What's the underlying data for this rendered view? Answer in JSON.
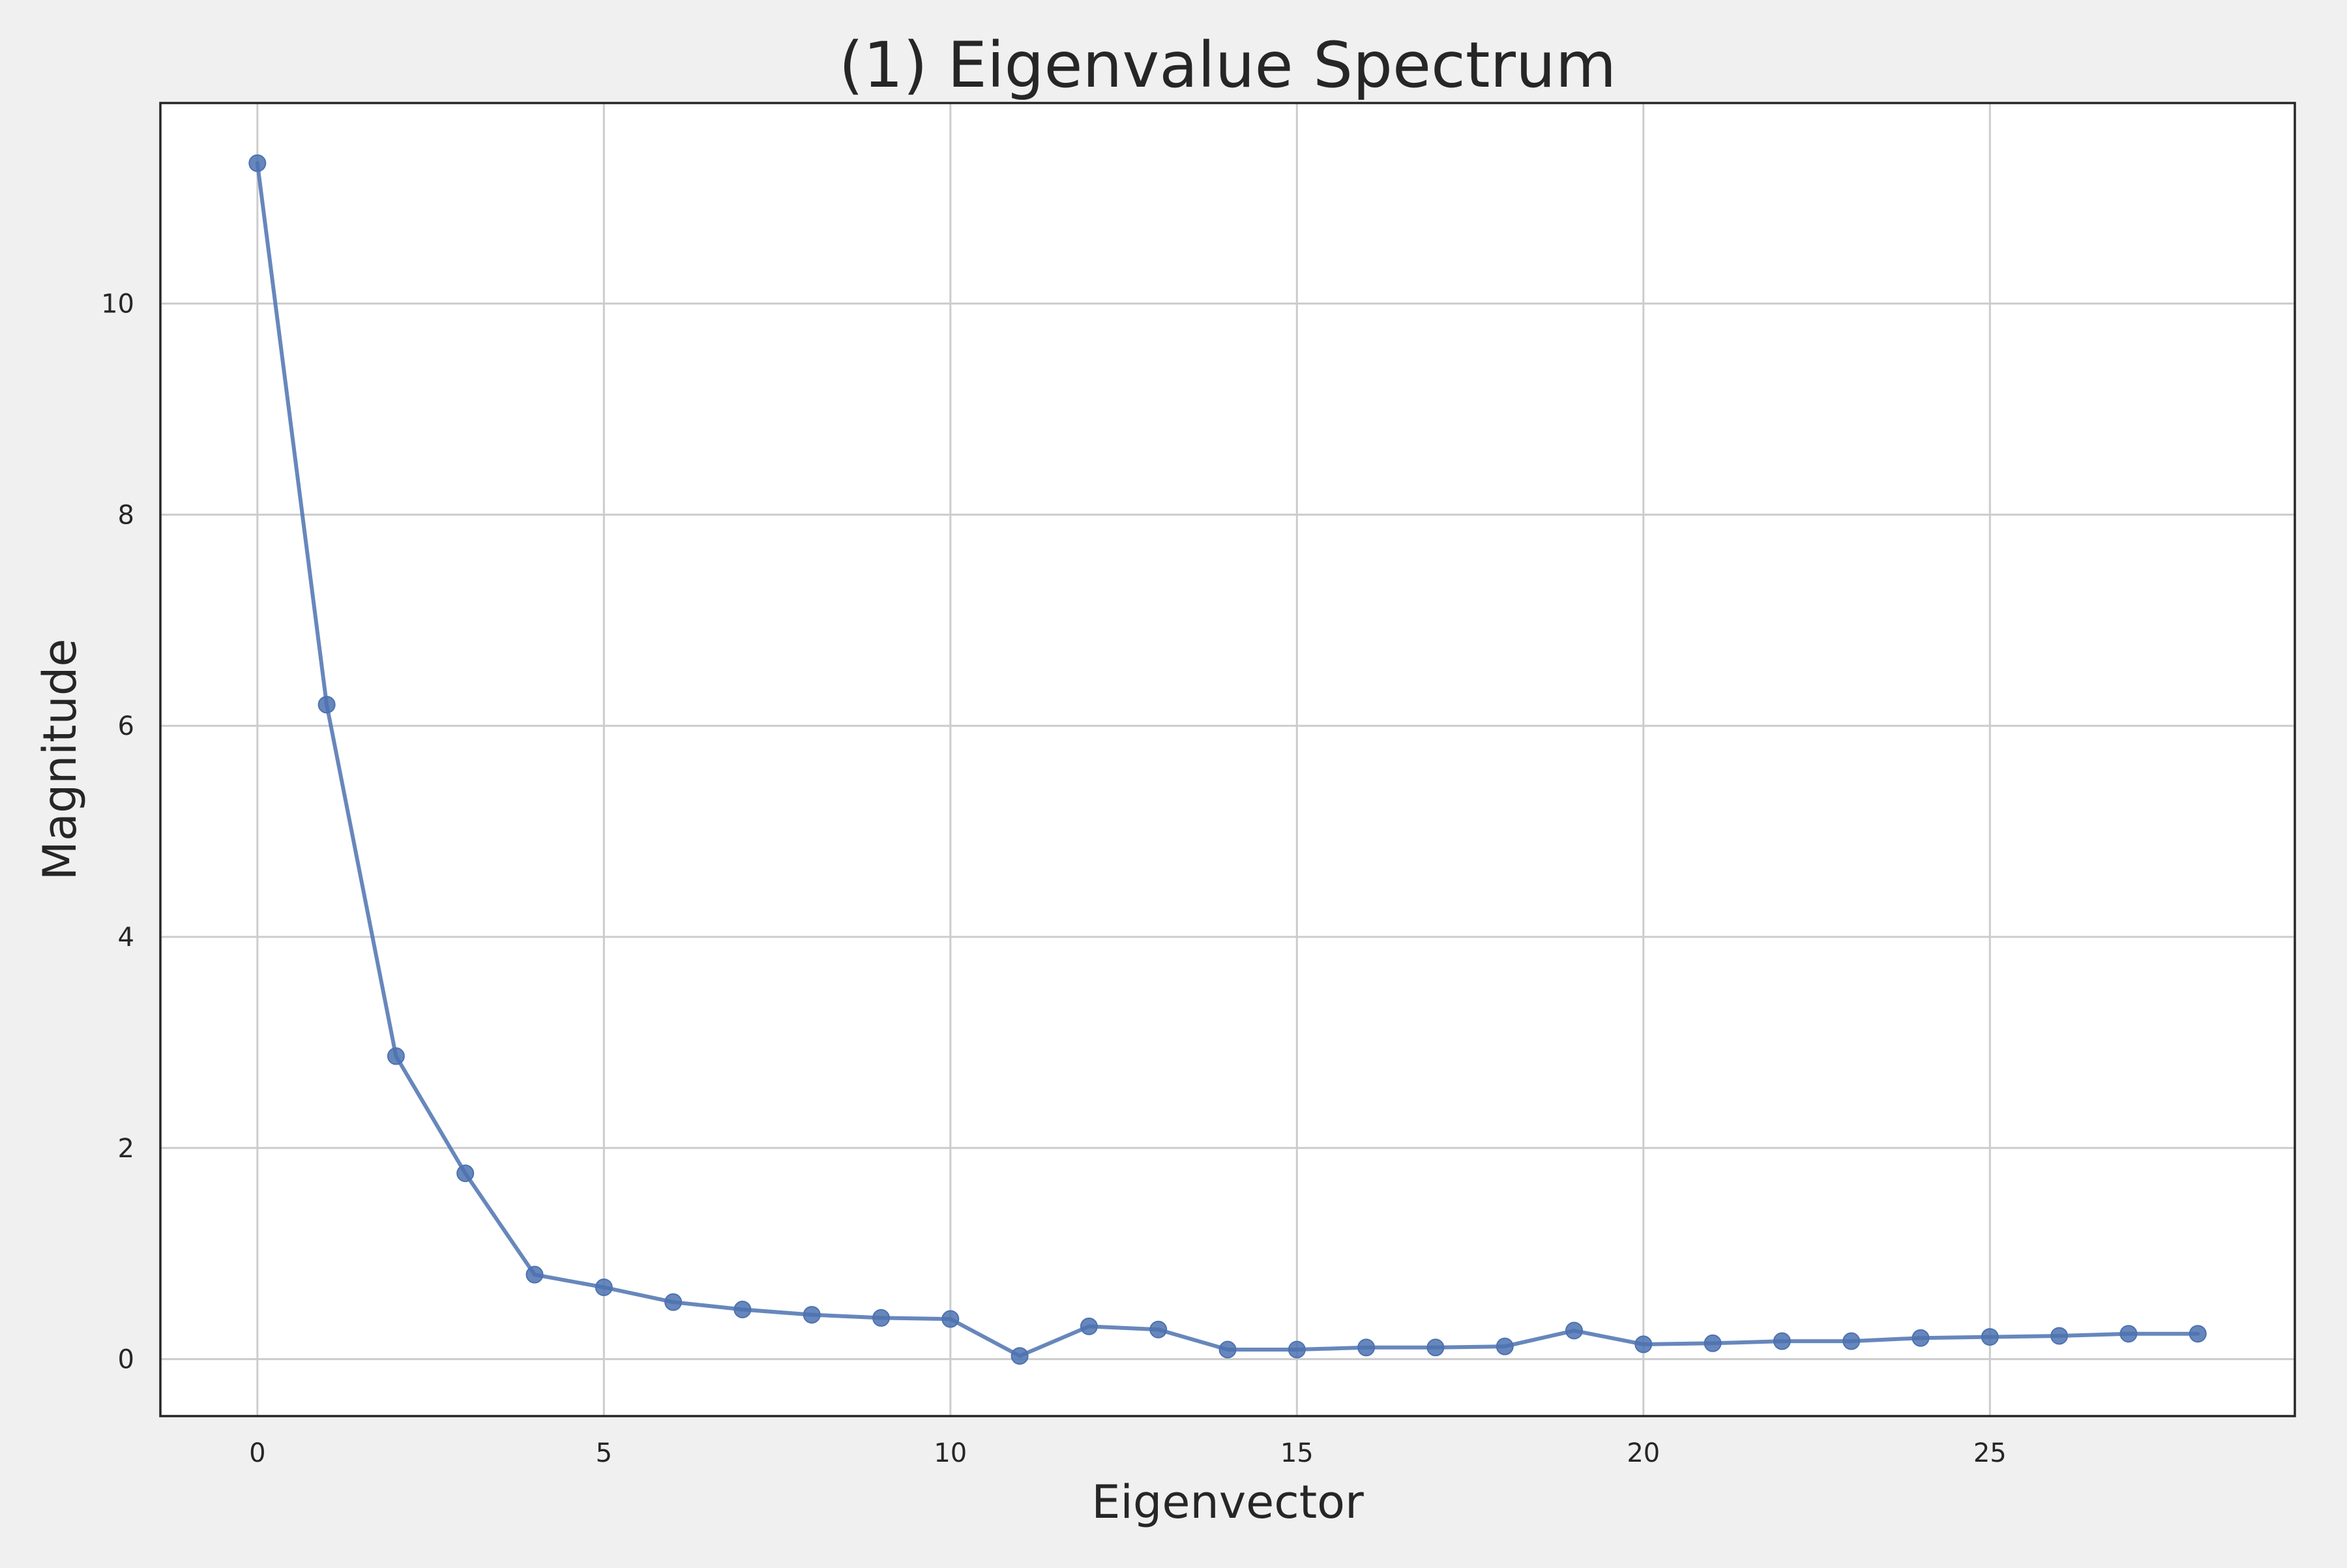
{
  "chart_data": {
    "type": "line",
    "title": "(1) Eigenvalue Spectrum",
    "xlabel": "Eigenvector",
    "ylabel": "Magnitude",
    "xlim": [
      -1.4,
      29.4
    ],
    "ylim": [
      -0.54,
      11.9
    ],
    "xticks": [
      0,
      5,
      10,
      15,
      20,
      25
    ],
    "yticks": [
      0,
      2,
      4,
      6,
      8,
      10
    ],
    "grid": true,
    "legend": "none",
    "series": [
      {
        "color": "#4c72b0",
        "marker": "circle",
        "x": [
          0,
          1,
          2,
          3,
          4,
          5,
          6,
          7,
          8,
          9,
          10,
          11,
          12,
          13,
          14,
          15,
          16,
          17,
          18,
          19,
          20,
          21,
          22,
          23,
          24,
          25,
          26,
          27,
          28
        ],
        "y": [
          11.33,
          6.2,
          2.87,
          1.76,
          0.8,
          0.68,
          0.54,
          0.47,
          0.42,
          0.39,
          0.38,
          0.03,
          0.31,
          0.28,
          0.09,
          0.09,
          0.11,
          0.11,
          0.12,
          0.27,
          0.14,
          0.15,
          0.17,
          0.17,
          0.2,
          0.21,
          0.22,
          0.24,
          0.24
        ]
      }
    ]
  }
}
